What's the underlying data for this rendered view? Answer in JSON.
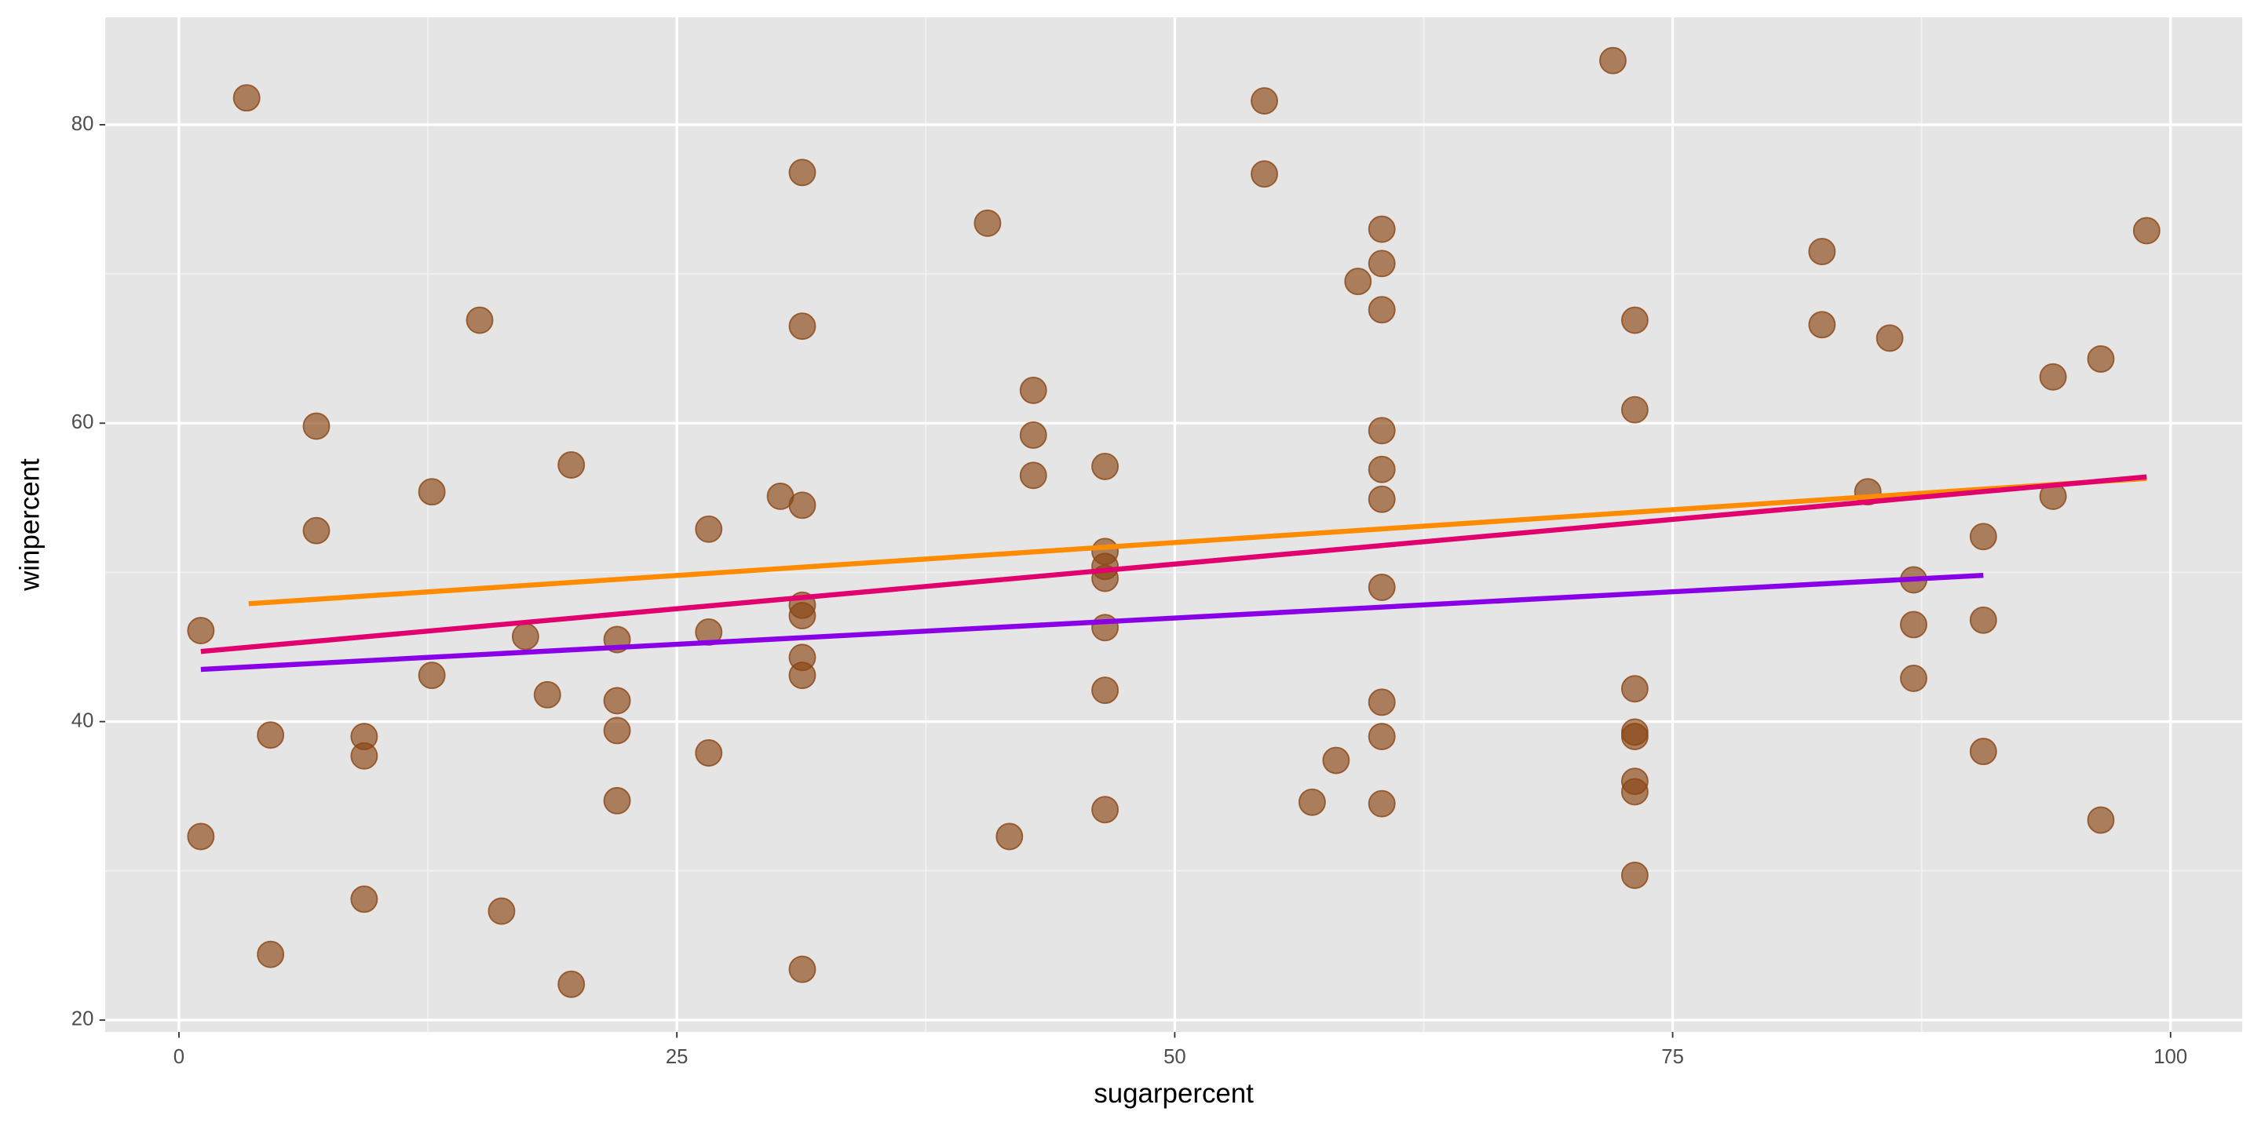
{
  "chart_data": {
    "type": "scatter",
    "x_label": "sugarpercent",
    "y_label": "winpercent",
    "xlim": [
      -3.7,
      103.6
    ],
    "ylim": [
      19.2,
      87.2
    ],
    "xticks": [
      0,
      25,
      50,
      75,
      100
    ],
    "yticks": [
      20,
      40,
      60,
      80
    ],
    "x_minor_grid": [
      12.5,
      37.5,
      62.5,
      87.5
    ],
    "y_minor_grid": [
      30,
      50,
      70
    ],
    "grid": true,
    "panel_color": "#e5e5e5",
    "series": [
      {
        "type": "scatter",
        "color": "#8b4513",
        "x": [
          3.4,
          1.1,
          1.1,
          4.6,
          4.6,
          6.9,
          6.9,
          9.3,
          9.3,
          9.3,
          12.7,
          12.7,
          15.1,
          16.2,
          17.4,
          18.5,
          19.7,
          19.7,
          22.0,
          22.0,
          22.0,
          22.0,
          26.6,
          26.6,
          26.6,
          30.2,
          31.3,
          31.3,
          31.3,
          31.3,
          31.3,
          31.3,
          31.3,
          31.3,
          40.6,
          41.7,
          42.9,
          42.9,
          42.9,
          46.5,
          46.5,
          46.5,
          46.5,
          46.5,
          46.5,
          46.5,
          54.5,
          54.5,
          56.9,
          58.1,
          59.2,
          60.4,
          60.4,
          60.4,
          60.4,
          60.4,
          60.4,
          60.4,
          60.4,
          60.4,
          60.4,
          72.0,
          73.1,
          73.1,
          73.1,
          73.1,
          73.1,
          73.1,
          73.1,
          73.1,
          82.5,
          82.5,
          84.8,
          85.9,
          87.1,
          87.1,
          87.1,
          90.6,
          90.6,
          90.6,
          94.1,
          94.1,
          96.5,
          96.5,
          98.8
        ],
        "values": [
          81.8,
          46.1,
          32.3,
          39.1,
          24.4,
          59.8,
          52.8,
          39.0,
          37.7,
          28.1,
          55.4,
          43.1,
          66.9,
          27.3,
          45.7,
          41.8,
          57.2,
          22.4,
          45.5,
          41.4,
          39.4,
          34.7,
          52.9,
          46.0,
          37.9,
          55.1,
          76.8,
          66.5,
          54.5,
          47.8,
          47.1,
          44.3,
          43.1,
          23.4,
          73.4,
          32.3,
          62.2,
          59.2,
          56.5,
          57.1,
          51.4,
          50.4,
          49.6,
          46.3,
          42.1,
          34.1,
          81.6,
          76.7,
          34.6,
          37.4,
          69.5,
          73.0,
          70.7,
          67.6,
          59.5,
          56.9,
          54.9,
          49.0,
          41.3,
          39.0,
          34.5,
          84.3,
          66.9,
          60.9,
          42.2,
          39.3,
          39.0,
          36.0,
          35.3,
          29.7,
          71.5,
          66.6,
          55.4,
          65.7,
          49.5,
          46.5,
          42.9,
          52.4,
          46.8,
          38.0,
          63.1,
          55.1,
          64.3,
          33.4,
          72.9
        ]
      },
      {
        "type": "line",
        "color": "#ff8c00",
        "x": [
          3.5,
          98.8
        ],
        "values": [
          47.9,
          56.3
        ]
      },
      {
        "type": "line",
        "color": "#e0006e",
        "x": [
          1.1,
          98.8
        ],
        "values": [
          44.7,
          56.4
        ]
      },
      {
        "type": "line",
        "color": "#8a00e6",
        "x": [
          1.1,
          90.6
        ],
        "values": [
          43.5,
          49.8
        ]
      }
    ]
  }
}
